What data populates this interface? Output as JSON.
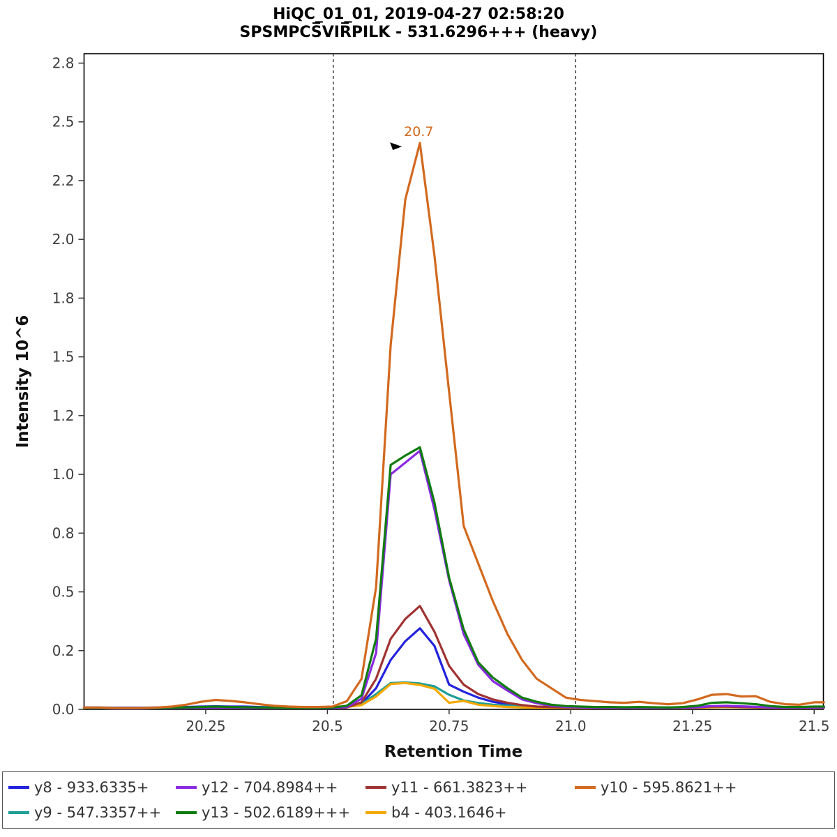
{
  "header": {
    "title": "HiQC_01_01, 2019-04-27 02:58:20",
    "subtitle": "SPSMPCS̅VIR̅PILK - 531.6296+++ (heavy)"
  },
  "chart_data": {
    "type": "line",
    "title": "HiQC_01_01, 2019-04-27 02:58:20",
    "subtitle": "SPSMPCS̅VIR̅PILK - 531.6296+++ (heavy)",
    "xlabel": "Retention Time",
    "ylabel": "Intensity 10^6",
    "xlim": [
      20.0,
      21.519
    ],
    "ylim": [
      0,
      2.79
    ],
    "x_ticks": {
      "values": [
        20.25,
        20.5,
        20.75,
        21.0,
        21.25,
        21.5
      ],
      "labels": [
        "20.25",
        "20.5",
        "20.75",
        "21.0",
        "21.25",
        "21.5"
      ]
    },
    "y_ticks": {
      "values": [
        0,
        0.25,
        0.5,
        0.75,
        1.0,
        1.25,
        1.5,
        1.75,
        2.0,
        2.25,
        2.5,
        2.75
      ],
      "labels": [
        "0.0",
        "0.2",
        "0.5",
        "0.8",
        "1.0",
        "1.2",
        "1.5",
        "1.8",
        "2.0",
        "2.2",
        "2.5",
        "2.8"
      ]
    },
    "boundaries": [
      20.512,
      21.01
    ],
    "boundary_color": "#3c3c3c",
    "peak_annotation": {
      "label": "20.7",
      "x": 20.653,
      "y": 2.395,
      "color": "#d2691e"
    },
    "x": [
      20.0,
      20.03,
      20.06,
      20.09,
      20.12,
      20.15,
      20.18,
      20.21,
      20.24,
      20.27,
      20.3,
      20.33,
      20.36,
      20.39,
      20.42,
      20.45,
      20.48,
      20.51,
      20.54,
      20.57,
      20.6,
      20.63,
      20.66,
      20.69,
      20.72,
      20.75,
      20.78,
      20.81,
      20.84,
      20.87,
      20.9,
      20.93,
      20.96,
      20.99,
      21.02,
      21.05,
      21.08,
      21.11,
      21.14,
      21.17,
      21.2,
      21.23,
      21.26,
      21.29,
      21.32,
      21.35,
      21.38,
      21.41,
      21.44,
      21.47,
      21.5,
      21.52
    ],
    "series": [
      {
        "name": "y8",
        "label": "y8 - 933.6335+",
        "color": "#2222dd",
        "values": [
          0.008,
          0.008,
          0.007,
          0.007,
          0.007,
          0.008,
          0.009,
          0.01,
          0.012,
          0.013,
          0.012,
          0.012,
          0.01,
          0.009,
          0.008,
          0.008,
          0.008,
          0.008,
          0.01,
          0.025,
          0.09,
          0.21,
          0.29,
          0.345,
          0.27,
          0.105,
          0.075,
          0.05,
          0.032,
          0.022,
          0.016,
          0.012,
          0.01,
          0.009,
          0.009,
          0.009,
          0.008,
          0.008,
          0.009,
          0.008,
          0.008,
          0.009,
          0.01,
          0.013,
          0.014,
          0.012,
          0.01,
          0.009,
          0.009,
          0.009,
          0.01,
          0.01
        ]
      },
      {
        "name": "y12",
        "label": "y12 - 704.8984++",
        "color": "#8a2be2",
        "values": [
          0.005,
          0.005,
          0.004,
          0.004,
          0.004,
          0.005,
          0.005,
          0.006,
          0.007,
          0.008,
          0.007,
          0.006,
          0.006,
          0.005,
          0.005,
          0.005,
          0.005,
          0.006,
          0.01,
          0.045,
          0.24,
          1.0,
          1.05,
          1.1,
          0.85,
          0.55,
          0.32,
          0.19,
          0.12,
          0.08,
          0.042,
          0.026,
          0.016,
          0.01,
          0.008,
          0.007,
          0.007,
          0.006,
          0.007,
          0.006,
          0.006,
          0.007,
          0.009,
          0.014,
          0.015,
          0.013,
          0.011,
          0.008,
          0.007,
          0.007,
          0.008,
          0.008
        ]
      },
      {
        "name": "y11",
        "label": "y11 - 661.3823++",
        "color": "#a03333",
        "values": [
          0.006,
          0.006,
          0.005,
          0.005,
          0.005,
          0.006,
          0.006,
          0.007,
          0.008,
          0.009,
          0.008,
          0.007,
          0.007,
          0.006,
          0.006,
          0.006,
          0.006,
          0.007,
          0.008,
          0.03,
          0.13,
          0.3,
          0.385,
          0.44,
          0.33,
          0.185,
          0.105,
          0.065,
          0.042,
          0.028,
          0.018,
          0.012,
          0.01,
          0.008,
          0.008,
          0.007,
          0.007,
          0.007,
          0.008,
          0.007,
          0.007,
          0.008,
          0.009,
          0.012,
          0.012,
          0.01,
          0.009,
          0.008,
          0.007,
          0.007,
          0.008,
          0.008
        ]
      },
      {
        "name": "y10",
        "label": "y10 - 595.8621++",
        "color": "#d2691e",
        "values": [
          0.008,
          0.008,
          0.006,
          0.005,
          0.006,
          0.008,
          0.012,
          0.02,
          0.032,
          0.04,
          0.036,
          0.03,
          0.022,
          0.015,
          0.012,
          0.01,
          0.01,
          0.012,
          0.035,
          0.13,
          0.52,
          1.55,
          2.17,
          2.41,
          1.93,
          1.35,
          0.78,
          0.62,
          0.46,
          0.32,
          0.21,
          0.13,
          0.09,
          0.05,
          0.04,
          0.035,
          0.03,
          0.028,
          0.032,
          0.026,
          0.022,
          0.026,
          0.042,
          0.062,
          0.065,
          0.055,
          0.056,
          0.032,
          0.022,
          0.02,
          0.03,
          0.03
        ]
      },
      {
        "name": "y9",
        "label": "y9 - 547.3357++",
        "color": "#1f9e96",
        "values": [
          0.007,
          0.007,
          0.006,
          0.006,
          0.006,
          0.007,
          0.007,
          0.008,
          0.009,
          0.01,
          0.009,
          0.008,
          0.008,
          0.007,
          0.007,
          0.007,
          0.007,
          0.008,
          0.012,
          0.022,
          0.065,
          0.112,
          0.115,
          0.11,
          0.098,
          0.062,
          0.038,
          0.027,
          0.02,
          0.016,
          0.013,
          0.011,
          0.01,
          0.009,
          0.008,
          0.008,
          0.008,
          0.008,
          0.008,
          0.008,
          0.008,
          0.008,
          0.009,
          0.011,
          0.012,
          0.01,
          0.009,
          0.008,
          0.008,
          0.008,
          0.008,
          0.008
        ]
      },
      {
        "name": "y13",
        "label": "y13 - 502.6189+++",
        "color": "#107c10",
        "values": [
          0.006,
          0.006,
          0.005,
          0.005,
          0.005,
          0.006,
          0.007,
          0.008,
          0.01,
          0.012,
          0.01,
          0.009,
          0.008,
          0.007,
          0.006,
          0.006,
          0.006,
          0.008,
          0.015,
          0.06,
          0.3,
          1.04,
          1.08,
          1.115,
          0.88,
          0.56,
          0.34,
          0.2,
          0.135,
          0.09,
          0.05,
          0.032,
          0.02,
          0.014,
          0.012,
          0.01,
          0.01,
          0.009,
          0.01,
          0.009,
          0.008,
          0.01,
          0.015,
          0.028,
          0.03,
          0.026,
          0.022,
          0.014,
          0.01,
          0.01,
          0.012,
          0.012
        ]
      },
      {
        "name": "b4",
        "label": "b4 - 403.1646+",
        "color": "#f5a800",
        "values": [
          0.006,
          0.006,
          0.005,
          0.005,
          0.005,
          0.006,
          0.006,
          0.007,
          0.008,
          0.009,
          0.008,
          0.007,
          0.007,
          0.006,
          0.006,
          0.006,
          0.006,
          0.007,
          0.01,
          0.018,
          0.055,
          0.108,
          0.112,
          0.104,
          0.088,
          0.028,
          0.036,
          0.02,
          0.014,
          0.01,
          0.008,
          0.007,
          0.007,
          0.006,
          0.006,
          0.006,
          0.006,
          0.006,
          0.006,
          0.006,
          0.006,
          0.006,
          0.007,
          0.009,
          0.01,
          0.009,
          0.008,
          0.007,
          0.006,
          0.006,
          0.007,
          0.007
        ]
      }
    ],
    "draw_order": [
      "y8",
      "y9",
      "b4",
      "y11",
      "y12",
      "y13",
      "y10"
    ],
    "legend_position": "bottom",
    "grid": false
  }
}
